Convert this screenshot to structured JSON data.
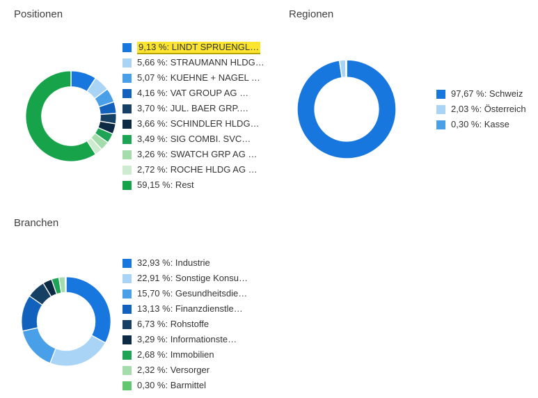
{
  "chart_data": [
    {
      "type": "pie",
      "variant": "donut",
      "title": "Positionen",
      "legend_position": "right",
      "unit": "%",
      "items": [
        {
          "label": "9,13 %: LINDT SPRUENGL…",
          "value": 9.13,
          "color": "#1877df",
          "highlighted": true
        },
        {
          "label": "5,66 %: STRAUMANN HLDG…",
          "value": 5.66,
          "color": "#a9d4f5"
        },
        {
          "label": "5,07 %: KUEHNE + NAGEL …",
          "value": 5.07,
          "color": "#4aa0e8"
        },
        {
          "label": "4,16 %: VAT GROUP AG …",
          "value": 4.16,
          "color": "#1261bd"
        },
        {
          "label": "3,70 %: JUL. BAER GRP.…",
          "value": 3.7,
          "color": "#153f63"
        },
        {
          "label": "3,66 %: SCHINDLER HLDG…",
          "value": 3.66,
          "color": "#0c2a43"
        },
        {
          "label": "3,49 %: SIG COMBI. SVC…",
          "value": 3.49,
          "color": "#1fa355"
        },
        {
          "label": "3,26 %: SWATCH GRP AG …",
          "value": 3.26,
          "color": "#a4dcab"
        },
        {
          "label": "2,72 %: ROCHE HLDG AG …",
          "value": 2.72,
          "color": "#cdeccf"
        },
        {
          "label": "59,15 %: Rest",
          "value": 59.15,
          "color": "#16a34a"
        }
      ]
    },
    {
      "type": "pie",
      "variant": "donut",
      "title": "Regionen",
      "legend_position": "right",
      "unit": "%",
      "items": [
        {
          "label": "97,67 %: Schweiz",
          "value": 97.67,
          "color": "#1877df"
        },
        {
          "label": "2,03 %: Österreich",
          "value": 2.03,
          "color": "#a9d4f5"
        },
        {
          "label": "0,30 %: Kasse",
          "value": 0.3,
          "color": "#4aa0e8"
        }
      ]
    },
    {
      "type": "pie",
      "variant": "donut",
      "title": "Branchen",
      "legend_position": "right",
      "unit": "%",
      "items": [
        {
          "label": "32,93 %: Industrie",
          "value": 32.93,
          "color": "#1877df"
        },
        {
          "label": "22,91 %: Sonstige Konsu…",
          "value": 22.91,
          "color": "#a9d4f5"
        },
        {
          "label": "15,70 %: Gesundheitsdie…",
          "value": 15.7,
          "color": "#4aa0e8"
        },
        {
          "label": "13,13 %: Finanzdienstle…",
          "value": 13.13,
          "color": "#1261bd"
        },
        {
          "label": "6,73 %: Rohstoffe",
          "value": 6.73,
          "color": "#153f63"
        },
        {
          "label": "3,29 %: Informationste…",
          "value": 3.29,
          "color": "#0c2a43"
        },
        {
          "label": "2,68 %: Immobilien",
          "value": 2.68,
          "color": "#1fa355"
        },
        {
          "label": "2,32 %: Versorger",
          "value": 2.32,
          "color": "#a4dcab"
        },
        {
          "label": "0,30 %: Barmittel",
          "value": 0.3,
          "color": "#63c76f"
        }
      ]
    }
  ],
  "highlight_style": {
    "background": "#fbe52e",
    "underline": "#b7a008"
  }
}
